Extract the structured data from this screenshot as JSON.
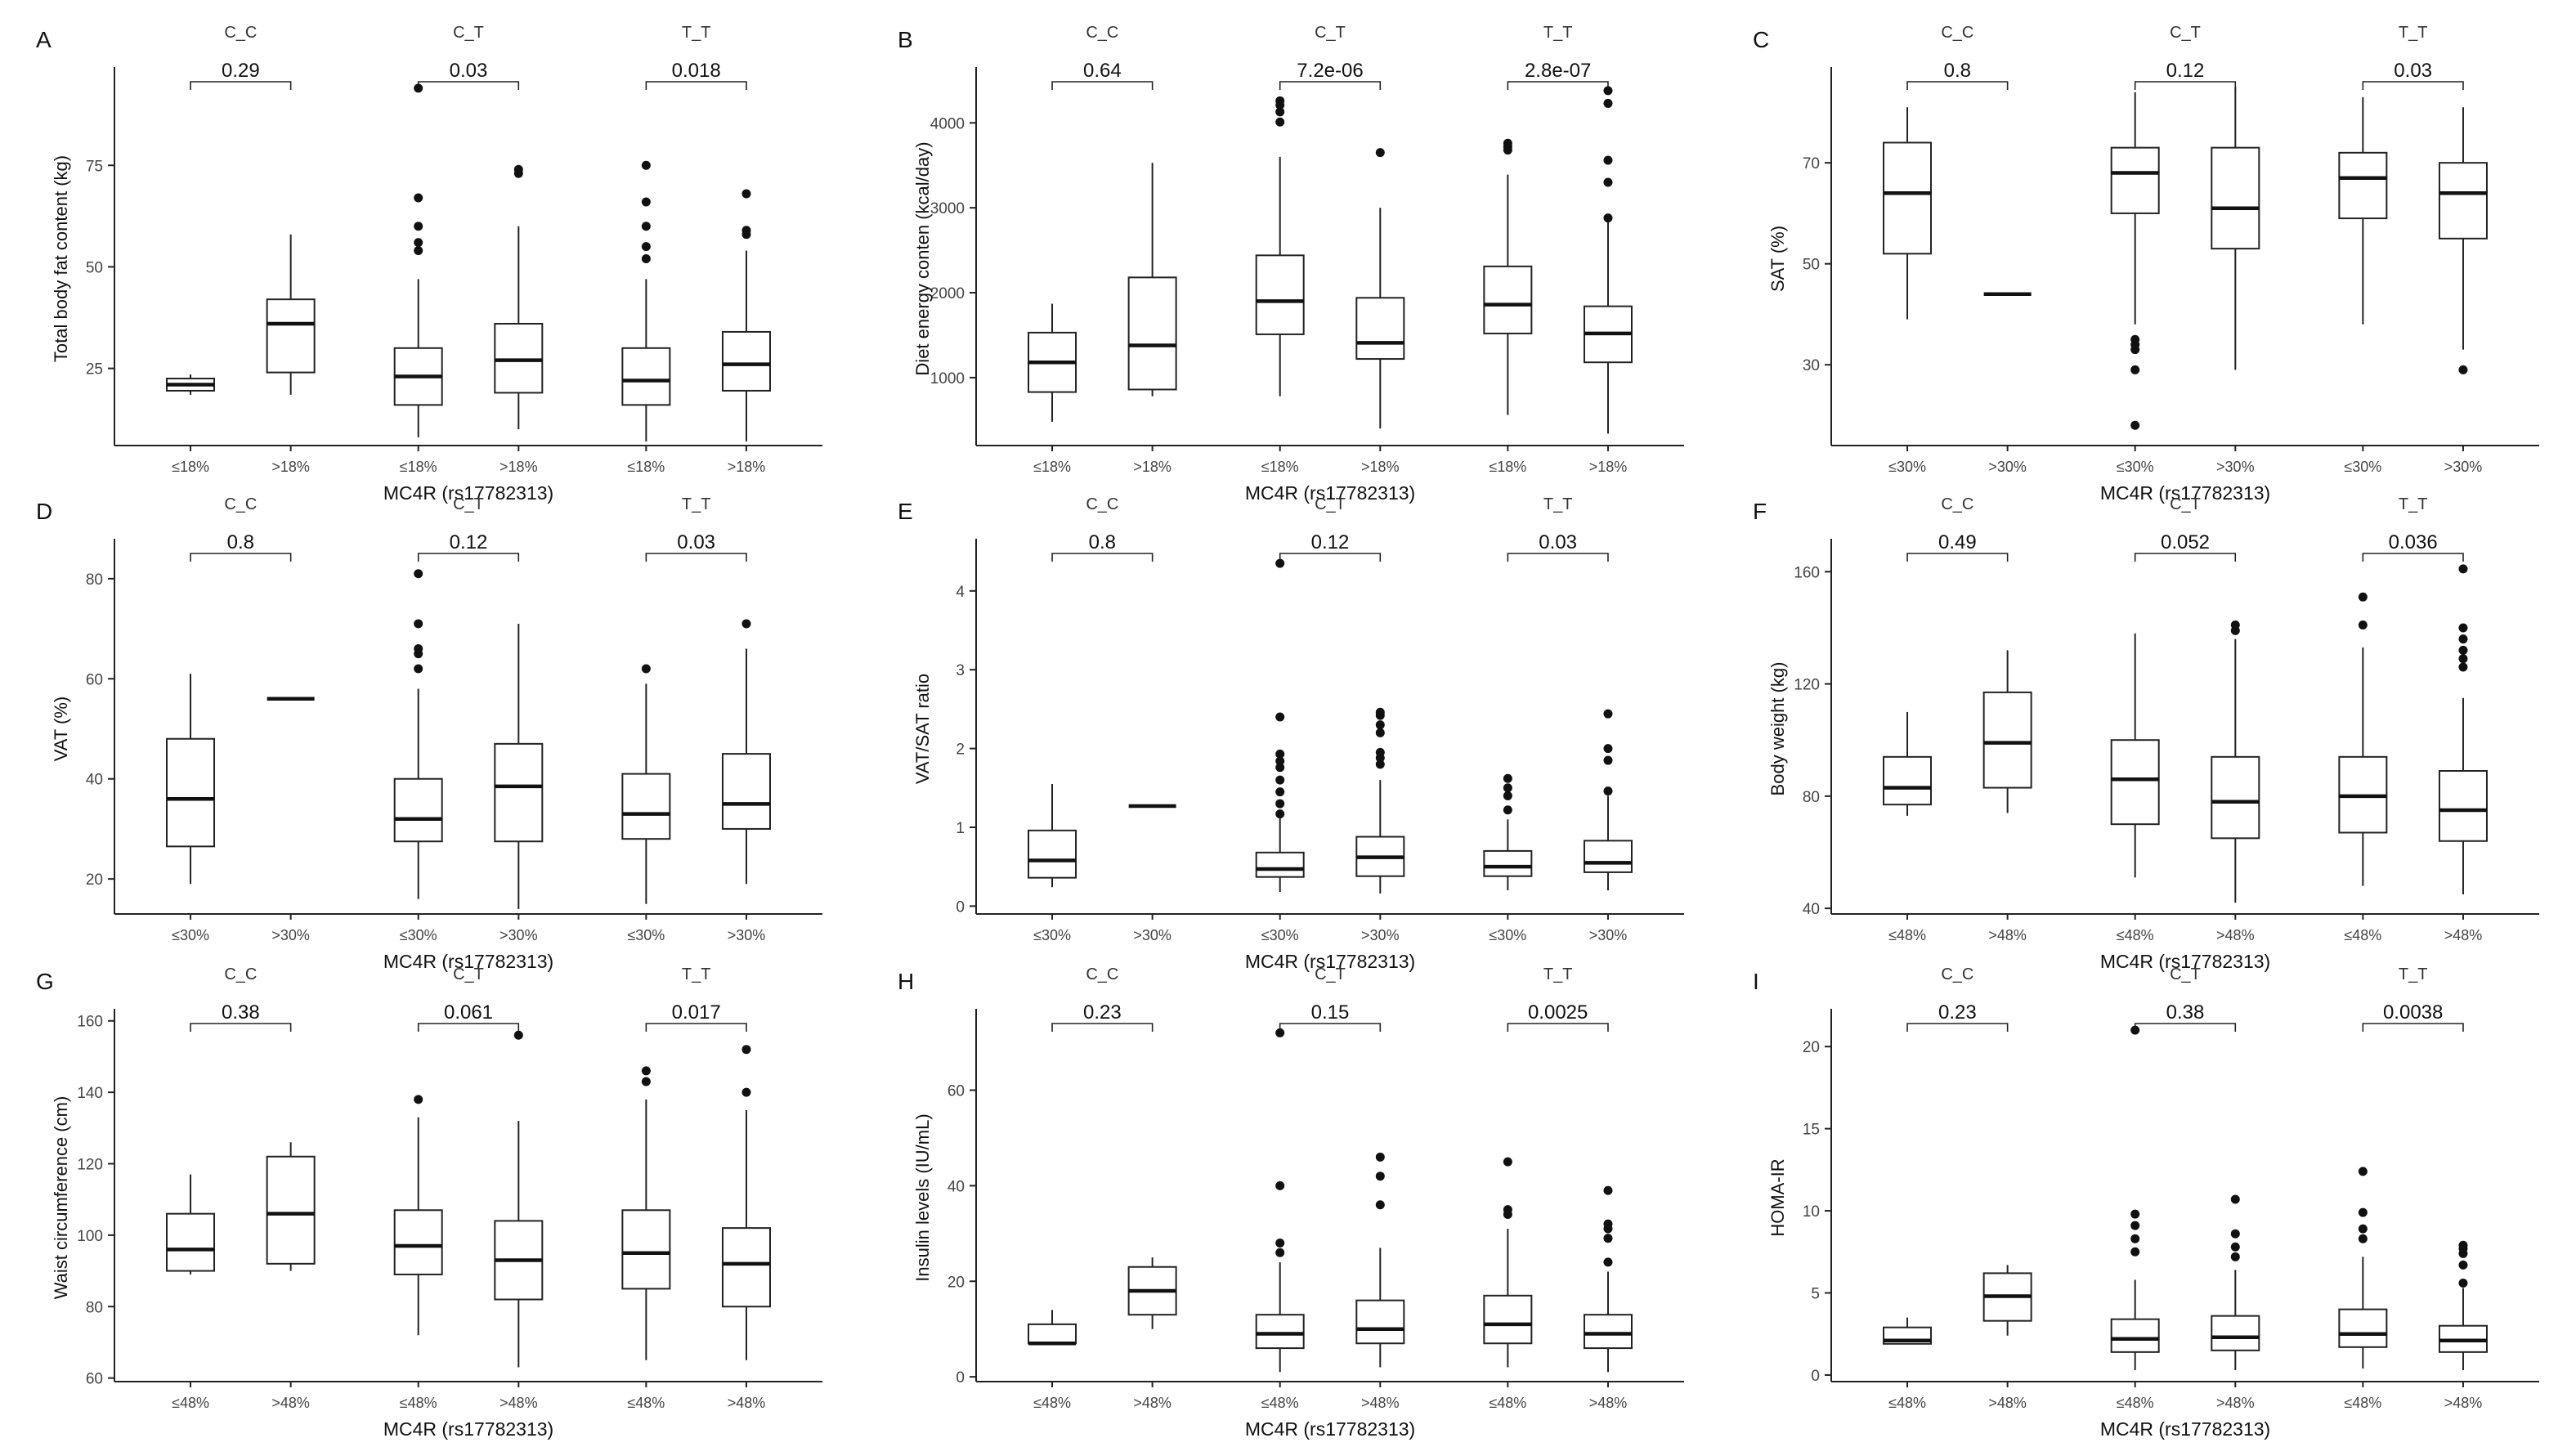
{
  "xlabel_common": "MC4R (rs17782313)",
  "chart_data": [
    {
      "letter": "A",
      "type": "boxplot",
      "ylabel": "Total body fat content (kg)",
      "ylim": [
        6,
        98
      ],
      "yticks": [
        25,
        50,
        75
      ],
      "categories": [
        "≤18%",
        ">18%"
      ],
      "groups": [
        {
          "name": "C_C",
          "pvalue": "0.29",
          "boxes": [
            {
              "q1": 19.5,
              "med": 21,
              "q3": 22.5,
              "lo": 18.5,
              "hi": 23.5,
              "out": []
            },
            {
              "q1": 24,
              "med": 36,
              "q3": 42,
              "lo": 18.5,
              "hi": 58,
              "out": []
            }
          ]
        },
        {
          "name": "C_T",
          "pvalue": "0.03",
          "boxes": [
            {
              "q1": 16,
              "med": 23,
              "q3": 30,
              "lo": 8,
              "hi": 47,
              "out": [
                54,
                56,
                60,
                67,
                94
              ]
            },
            {
              "q1": 19,
              "med": 27,
              "q3": 36,
              "lo": 10,
              "hi": 60,
              "out": [
                73,
                74
              ]
            }
          ]
        },
        {
          "name": "T_T",
          "pvalue": "0.018",
          "boxes": [
            {
              "q1": 16,
              "med": 22,
              "q3": 30,
              "lo": 7,
              "hi": 47,
              "out": [
                52,
                55,
                60,
                66,
                75
              ]
            },
            {
              "q1": 19.5,
              "med": 26,
              "q3": 34,
              "lo": 7,
              "hi": 54,
              "out": [
                58,
                59,
                68
              ]
            }
          ]
        }
      ]
    },
    {
      "letter": "B",
      "type": "boxplot",
      "ylabel": "Diet energy conten (kcal/day)",
      "ylim": [
        200,
        4600
      ],
      "yticks": [
        1000,
        2000,
        3000,
        4000
      ],
      "categories": [
        "≤18%",
        ">18%"
      ],
      "groups": [
        {
          "name": "C_C",
          "pvalue": "0.64",
          "boxes": [
            {
              "q1": 830,
              "med": 1180,
              "q3": 1530,
              "lo": 480,
              "hi": 1870,
              "out": []
            },
            {
              "q1": 860,
              "med": 1380,
              "q3": 2180,
              "lo": 780,
              "hi": 3530,
              "out": []
            }
          ]
        },
        {
          "name": "C_T",
          "pvalue": "7.2e-06",
          "boxes": [
            {
              "q1": 1510,
              "med": 1900,
              "q3": 2440,
              "lo": 780,
              "hi": 3600,
              "out": [
                4010,
                4130,
                4210,
                4260
              ]
            },
            {
              "q1": 1220,
              "med": 1410,
              "q3": 1940,
              "lo": 400,
              "hi": 3000,
              "out": [
                3650
              ]
            }
          ]
        },
        {
          "name": "T_T",
          "pvalue": "2.8e-07",
          "boxes": [
            {
              "q1": 1520,
              "med": 1860,
              "q3": 2310,
              "lo": 560,
              "hi": 3390,
              "out": [
                3680,
                3720,
                3760
              ]
            },
            {
              "q1": 1180,
              "med": 1520,
              "q3": 1840,
              "lo": 340,
              "hi": 2830,
              "out": [
                2880,
                3300,
                3560,
                4230,
                4380
              ]
            }
          ]
        }
      ]
    },
    {
      "letter": "C",
      "type": "boxplot",
      "ylabel": "SAT (%)",
      "ylim": [
        14,
        88
      ],
      "yticks": [
        30,
        50,
        70
      ],
      "categories": [
        "≤30%",
        ">30%"
      ],
      "groups": [
        {
          "name": "C_C",
          "pvalue": "0.8",
          "boxes": [
            {
              "q1": 52,
              "med": 64,
              "q3": 74,
              "lo": 39,
              "hi": 81,
              "out": []
            },
            {
              "q1": 44,
              "med": 44,
              "q3": 44,
              "lo": 44,
              "hi": 44,
              "out": []
            }
          ]
        },
        {
          "name": "C_T",
          "pvalue": "0.12",
          "boxes": [
            {
              "q1": 60,
              "med": 68,
              "q3": 73,
              "lo": 38,
              "hi": 84,
              "out": [
                18,
                29,
                33,
                34,
                35
              ]
            },
            {
              "q1": 53,
              "med": 61,
              "q3": 73,
              "lo": 29,
              "hi": 85,
              "out": []
            }
          ]
        },
        {
          "name": "T_T",
          "pvalue": "0.03",
          "boxes": [
            {
              "q1": 59,
              "med": 67,
              "q3": 72,
              "lo": 38,
              "hi": 83,
              "out": []
            },
            {
              "q1": 55,
              "med": 64,
              "q3": 70,
              "lo": 33,
              "hi": 81,
              "out": [
                29
              ]
            }
          ]
        }
      ]
    },
    {
      "letter": "D",
      "type": "boxplot",
      "ylabel": "VAT (%)",
      "ylim": [
        13,
        87
      ],
      "yticks": [
        20,
        40,
        60,
        80
      ],
      "categories": [
        "≤30%",
        ">30%"
      ],
      "groups": [
        {
          "name": "C_C",
          "pvalue": "0.8",
          "boxes": [
            {
              "q1": 26.5,
              "med": 36,
              "q3": 48,
              "lo": 19,
              "hi": 61,
              "out": []
            },
            {
              "q1": 56,
              "med": 56,
              "q3": 56,
              "lo": 56,
              "hi": 56,
              "out": []
            }
          ]
        },
        {
          "name": "C_T",
          "pvalue": "0.12",
          "boxes": [
            {
              "q1": 27.5,
              "med": 32,
              "q3": 40,
              "lo": 16,
              "hi": 58,
              "out": [
                62,
                65,
                66,
                71,
                81
              ]
            },
            {
              "q1": 27.5,
              "med": 38.5,
              "q3": 47,
              "lo": 14,
              "hi": 71,
              "out": []
            }
          ]
        },
        {
          "name": "T_T",
          "pvalue": "0.03",
          "boxes": [
            {
              "q1": 28,
              "med": 33,
              "q3": 41,
              "lo": 15,
              "hi": 59,
              "out": [
                62
              ]
            },
            {
              "q1": 30,
              "med": 35,
              "q3": 45,
              "lo": 19,
              "hi": 66,
              "out": [
                71
              ]
            }
          ]
        }
      ]
    },
    {
      "letter": "E",
      "type": "boxplot",
      "ylabel": "VAT/SAT ratio",
      "ylim": [
        -0.1,
        4.6
      ],
      "yticks": [
        0,
        1,
        2,
        3,
        4
      ],
      "categories": [
        "≤30%",
        ">30%"
      ],
      "groups": [
        {
          "name": "C_C",
          "pvalue": "0.8",
          "boxes": [
            {
              "q1": 0.36,
              "med": 0.58,
              "q3": 0.96,
              "lo": 0.24,
              "hi": 1.55,
              "out": []
            },
            {
              "q1": 1.27,
              "med": 1.27,
              "q3": 1.27,
              "lo": 1.27,
              "hi": 1.27,
              "out": []
            }
          ]
        },
        {
          "name": "C_T",
          "pvalue": "0.12",
          "boxes": [
            {
              "q1": 0.37,
              "med": 0.47,
              "q3": 0.68,
              "lo": 0.18,
              "hi": 1.12,
              "out": [
                1.17,
                1.3,
                1.45,
                1.6,
                1.76,
                1.84,
                1.93,
                2.4,
                4.35
              ]
            },
            {
              "q1": 0.38,
              "med": 0.62,
              "q3": 0.88,
              "lo": 0.16,
              "hi": 1.6,
              "out": [
                1.8,
                1.88,
                1.95,
                2.2,
                2.3,
                2.42,
                2.46
              ]
            }
          ]
        },
        {
          "name": "T_T",
          "pvalue": "0.03",
          "boxes": [
            {
              "q1": 0.38,
              "med": 0.5,
              "q3": 0.7,
              "lo": 0.2,
              "hi": 1.1,
              "out": [
                1.22,
                1.4,
                1.5,
                1.62
              ]
            },
            {
              "q1": 0.43,
              "med": 0.55,
              "q3": 0.83,
              "lo": 0.2,
              "hi": 1.4,
              "out": [
                1.46,
                1.85,
                2.0,
                2.44
              ]
            }
          ]
        }
      ]
    },
    {
      "letter": "F",
      "type": "boxplot",
      "ylabel": "Body weight (kg)",
      "ylim": [
        38,
        170
      ],
      "yticks": [
        40,
        80,
        120,
        160
      ],
      "categories": [
        "≤48%",
        ">48%"
      ],
      "groups": [
        {
          "name": "C_C",
          "pvalue": "0.49",
          "boxes": [
            {
              "q1": 77,
              "med": 83,
              "q3": 94,
              "lo": 73,
              "hi": 110,
              "out": []
            },
            {
              "q1": 83,
              "med": 99,
              "q3": 117,
              "lo": 74,
              "hi": 132,
              "out": []
            }
          ]
        },
        {
          "name": "C_T",
          "pvalue": "0.052",
          "boxes": [
            {
              "q1": 70,
              "med": 86,
              "q3": 100,
              "lo": 51,
              "hi": 138,
              "out": []
            },
            {
              "q1": 65,
              "med": 78,
              "q3": 94,
              "lo": 42,
              "hi": 136,
              "out": [
                139,
                141
              ]
            }
          ]
        },
        {
          "name": "T_T",
          "pvalue": "0.036",
          "boxes": [
            {
              "q1": 67,
              "med": 80,
              "q3": 94,
              "lo": 48,
              "hi": 133,
              "out": [
                141,
                151
              ]
            },
            {
              "q1": 64,
              "med": 75,
              "q3": 89,
              "lo": 45,
              "hi": 115,
              "out": [
                126,
                129,
                132,
                136,
                140,
                161
              ]
            }
          ]
        }
      ]
    },
    {
      "letter": "G",
      "type": "boxplot",
      "ylabel": "Waist circumference (cm)",
      "ylim": [
        59,
        162
      ],
      "yticks": [
        60,
        80,
        100,
        120,
        140,
        160
      ],
      "categories": [
        "≤48%",
        ">48%"
      ],
      "groups": [
        {
          "name": "C_C",
          "pvalue": "0.38",
          "boxes": [
            {
              "q1": 90,
              "med": 96,
              "q3": 106,
              "lo": 89,
              "hi": 117,
              "out": []
            },
            {
              "q1": 92,
              "med": 106,
              "q3": 122,
              "lo": 90,
              "hi": 126,
              "out": []
            }
          ]
        },
        {
          "name": "C_T",
          "pvalue": "0.061",
          "boxes": [
            {
              "q1": 89,
              "med": 97,
              "q3": 107,
              "lo": 72,
              "hi": 133,
              "out": [
                138
              ]
            },
            {
              "q1": 82,
              "med": 93,
              "q3": 104,
              "lo": 63,
              "hi": 132,
              "out": [
                156
              ]
            }
          ]
        },
        {
          "name": "T_T",
          "pvalue": "0.017",
          "boxes": [
            {
              "q1": 85,
              "med": 95,
              "q3": 107,
              "lo": 65,
              "hi": 138,
              "out": [
                143,
                146
              ]
            },
            {
              "q1": 80,
              "med": 92,
              "q3": 102,
              "lo": 65,
              "hi": 135,
              "out": [
                140,
                152
              ]
            }
          ]
        }
      ]
    },
    {
      "letter": "H",
      "type": "boxplot",
      "ylabel": "Insulin levels (IU/mL)",
      "ylim": [
        -1,
        76
      ],
      "yticks": [
        0,
        20,
        40,
        60
      ],
      "categories": [
        "≤48%",
        ">48%"
      ],
      "groups": [
        {
          "name": "C_C",
          "pvalue": "0.23",
          "boxes": [
            {
              "q1": 7,
              "med": 7,
              "q3": 11,
              "lo": 7,
              "hi": 14,
              "out": []
            },
            {
              "q1": 13,
              "med": 18,
              "q3": 23,
              "lo": 10,
              "hi": 25,
              "out": []
            }
          ]
        },
        {
          "name": "C_T",
          "pvalue": "0.15",
          "boxes": [
            {
              "q1": 6,
              "med": 9,
              "q3": 13,
              "lo": 1,
              "hi": 24,
              "out": [
                26,
                28,
                40,
                72
              ]
            },
            {
              "q1": 7,
              "med": 10,
              "q3": 16,
              "lo": 2,
              "hi": 27,
              "out": [
                36,
                42,
                46
              ]
            }
          ]
        },
        {
          "name": "T_T",
          "pvalue": "0.0025",
          "boxes": [
            {
              "q1": 7,
              "med": 11,
              "q3": 17,
              "lo": 2,
              "hi": 31,
              "out": [
                34,
                35,
                45
              ]
            },
            {
              "q1": 6,
              "med": 9,
              "q3": 13,
              "lo": 1,
              "hi": 22,
              "out": [
                24,
                29,
                31,
                32,
                39
              ]
            }
          ]
        }
      ]
    },
    {
      "letter": "I",
      "type": "boxplot",
      "ylabel": "HOMA-IR",
      "ylim": [
        -0.4,
        22
      ],
      "yticks": [
        0,
        5,
        10,
        15,
        20
      ],
      "categories": [
        "≤48%",
        ">48%"
      ],
      "groups": [
        {
          "name": "C_C",
          "pvalue": "0.23",
          "boxes": [
            {
              "q1": 1.9,
              "med": 2.1,
              "q3": 2.9,
              "lo": 1.9,
              "hi": 3.5,
              "out": []
            },
            {
              "q1": 3.3,
              "med": 4.8,
              "q3": 6.2,
              "lo": 2.4,
              "hi": 6.7,
              "out": []
            }
          ]
        },
        {
          "name": "C_T",
          "pvalue": "0.38",
          "boxes": [
            {
              "q1": 1.4,
              "med": 2.2,
              "q3": 3.4,
              "lo": 0.3,
              "hi": 5.8,
              "out": [
                7.5,
                8.3,
                9.1,
                9.8,
                21
              ]
            },
            {
              "q1": 1.5,
              "med": 2.3,
              "q3": 3.6,
              "lo": 0.3,
              "hi": 6.4,
              "out": [
                7.2,
                7.8,
                8.6,
                10.7
              ]
            }
          ]
        },
        {
          "name": "T_T",
          "pvalue": "0.0038",
          "boxes": [
            {
              "q1": 1.7,
              "med": 2.5,
              "q3": 4.0,
              "lo": 0.4,
              "hi": 7.2,
              "out": [
                8.3,
                8.9,
                9.9,
                12.4
              ]
            },
            {
              "q1": 1.4,
              "med": 2.1,
              "q3": 3.0,
              "lo": 0.3,
              "hi": 5.3,
              "out": [
                5.6,
                6.7,
                7.4,
                7.7,
                7.9
              ]
            }
          ]
        }
      ]
    }
  ]
}
